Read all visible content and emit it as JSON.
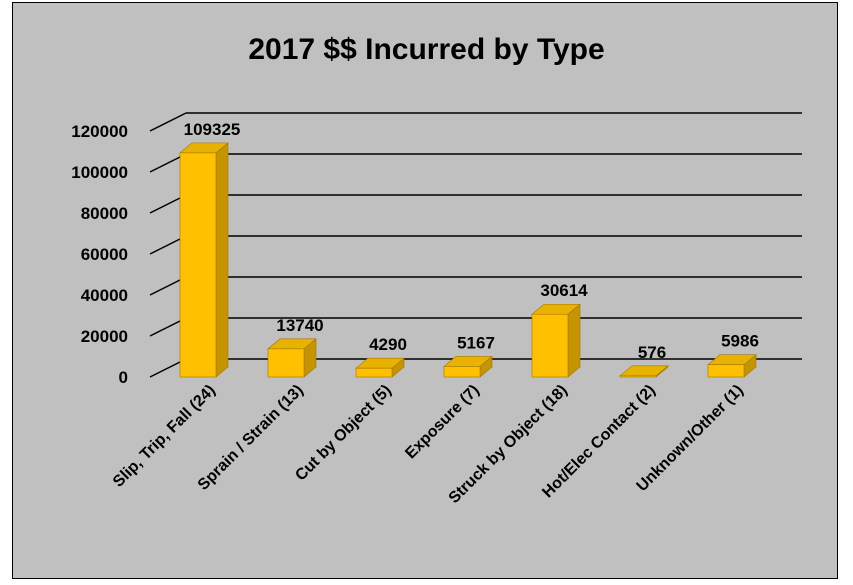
{
  "chart_data": {
    "type": "bar",
    "title": "2017 $$ Incurred by Type",
    "xlabel": "",
    "ylabel": "",
    "categories": [
      "Slip, Trip, Fall (24)",
      "Sprain / Strain (13)",
      "Cut by Object (5)",
      "Exposure (7)",
      "Struck by Object (18)",
      "Hot/Elec Contact (2)",
      "Unknown/Other (1)"
    ],
    "values": [
      109325,
      13740,
      4290,
      5167,
      30614,
      576,
      5986
    ],
    "yticks": [
      "0",
      "20000",
      "40000",
      "60000",
      "80000",
      "100000",
      "120000"
    ],
    "ylim": [
      0,
      120000
    ],
    "bar_style": "3d",
    "grid": true,
    "legend": "none",
    "colors": {
      "bar_front": "#ffc000",
      "bar_side": "#c49500",
      "bar_top": "#e8b200",
      "background": "#c0c0c0",
      "gridline": "#000000"
    }
  }
}
